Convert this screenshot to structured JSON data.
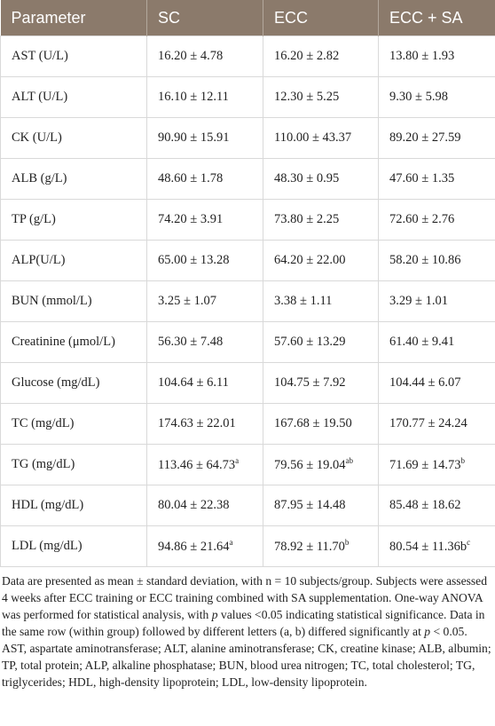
{
  "table": {
    "header": [
      "Parameter",
      "SC",
      "ECC",
      "ECC + SA"
    ],
    "rows": [
      [
        "AST (U/L)",
        "16.20 ± 4.78",
        "16.20 ± 2.82",
        "13.80 ± 1.93"
      ],
      [
        "ALT (U/L)",
        "16.10 ± 12.11",
        "12.30 ± 5.25",
        "9.30 ± 5.98"
      ],
      [
        "CK (U/L)",
        "90.90 ± 15.91",
        "110.00 ± 43.37",
        "89.20 ± 27.59"
      ],
      [
        "ALB (g/L)",
        "48.60 ± 1.78",
        "48.30 ± 0.95",
        "47.60 ± 1.35"
      ],
      [
        "TP (g/L)",
        "74.20 ± 3.91",
        "73.80 ± 2.25",
        "72.60 ± 2.76"
      ],
      [
        "ALP(U/L)",
        "65.00 ± 13.28",
        "64.20 ± 22.00",
        "58.20 ± 10.86"
      ],
      [
        "BUN (mmol/L)",
        "3.25 ± 1.07",
        "3.38 ± 1.11",
        "3.29 ± 1.01"
      ],
      [
        "Creatinine (μmol/L)",
        "56.30 ± 7.48",
        "57.60 ± 13.29",
        "61.40 ± 9.41"
      ],
      [
        "Glucose (mg/dL)",
        "104.64 ± 6.11",
        "104.75 ± 7.92",
        "104.44 ± 6.07"
      ],
      [
        "TC (mg/dL)",
        "174.63 ± 22.01",
        "167.68 ± 19.50",
        "170.77 ± 24.24"
      ],
      [
        "TG (mg/dL)",
        {
          "text": "113.46 ± 64.73",
          "sup": "a"
        },
        {
          "text": "79.56 ± 19.04",
          "sup": "ab"
        },
        {
          "text": "71.69 ± 14.73",
          "sup": "b"
        }
      ],
      [
        "HDL (mg/dL)",
        "80.04 ± 22.38",
        "87.95 ± 14.48",
        "85.48 ± 18.62"
      ],
      [
        "LDL (mg/dL)",
        {
          "text": "94.86 ± 21.64",
          "sup": "a"
        },
        {
          "text": "78.92 ± 11.70",
          "sup": "b"
        },
        {
          "text": "80.54 ± 11.36b",
          "sup": "c"
        }
      ]
    ]
  },
  "footnote": [
    {
      "text": "Data are presented as mean ± standard deviation, with n = 10 subjects/group. Subjects were assessed 4 weeks after ECC training or ECC training combined with SA supplementation. One-way ANOVA was performed for statistical analysis, with "
    },
    {
      "text": "p",
      "italic": true
    },
    {
      "text": " values <0.05 indicating statistical significance. Data in the same row (within group) followed by different letters (a, b) differed significantly at "
    },
    {
      "text": "p",
      "italic": true
    },
    {
      "text": " < 0.05. AST, aspartate aminotransferase; ALT, alanine aminotransferase; CK, creatine kinase; ALB, albumin; TP, total protein; ALP, alkaline phosphatase; BUN, blood urea nitrogen; TC, total cholesterol; TG, triglycerides; HDL, high-density lipoprotein; LDL, low-density lipoprotein."
    }
  ]
}
